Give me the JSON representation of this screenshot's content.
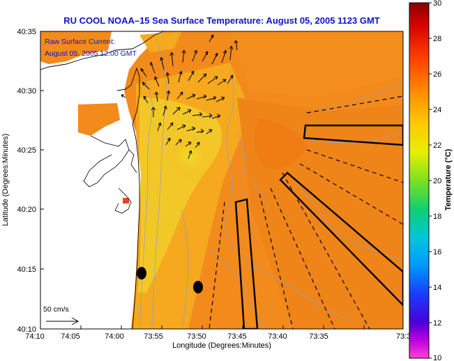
{
  "title": "RU COOL  NOAA–15  Sea Surface Temperature:  August 05, 2005 1123 GMT",
  "annotation": {
    "line1": "Raw Surface Current:",
    "line2": "August 05, 2005 12:00 GMT"
  },
  "scale_label": "50 cm/s",
  "x_axis": {
    "label": "Longitude (Degrees:Minutes)",
    "ticks": [
      "74:10",
      "74:05",
      "74:00",
      "73:55",
      "73:50",
      "73:45",
      "73:40",
      "73:35",
      "73:3"
    ]
  },
  "y_axis": {
    "label": "Latitude (Degrees:Minutes)",
    "ticks": [
      "40:35",
      "40:30",
      "40:25",
      "40:20",
      "40:15",
      "40:10"
    ]
  },
  "colorbar": {
    "label": "Temperature (°C)",
    "ticks": [
      "30",
      "28",
      "26",
      "24",
      "22",
      "20",
      "18",
      "16",
      "14",
      "12",
      "10"
    ]
  },
  "colors": {
    "title": "#1010c8",
    "sst_warm": "#f28a1c",
    "sst_mid": "#f6b21e",
    "sst_cool": "#f2d828",
    "land": "#ffffff",
    "vectors": "#000000"
  }
}
